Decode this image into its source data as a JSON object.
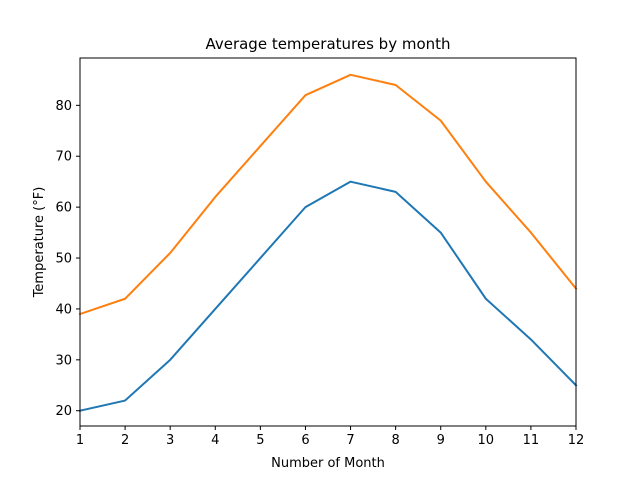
{
  "chart_data": {
    "type": "line",
    "title": "Average temperatures by month",
    "xlabel": "Number of Month",
    "ylabel": "Temperature (°F)",
    "xlim": [
      1,
      12
    ],
    "ylim": [
      17,
      89.3
    ],
    "x": [
      1,
      2,
      3,
      4,
      5,
      6,
      7,
      8,
      9,
      10,
      11,
      12
    ],
    "xticks": [
      1,
      2,
      3,
      4,
      5,
      6,
      7,
      8,
      9,
      10,
      11,
      12
    ],
    "yticks": [
      20,
      30,
      40,
      50,
      60,
      70,
      80
    ],
    "grid": false,
    "legend": "none",
    "series": [
      {
        "color": "#1f77b4",
        "values": [
          20,
          22,
          30,
          40,
          50,
          60,
          65,
          63,
          55,
          42,
          34,
          25
        ]
      },
      {
        "color": "#ff7f0e",
        "values": [
          39,
          42,
          51,
          62,
          72,
          82,
          86,
          84,
          77,
          65,
          55,
          44
        ]
      }
    ]
  }
}
